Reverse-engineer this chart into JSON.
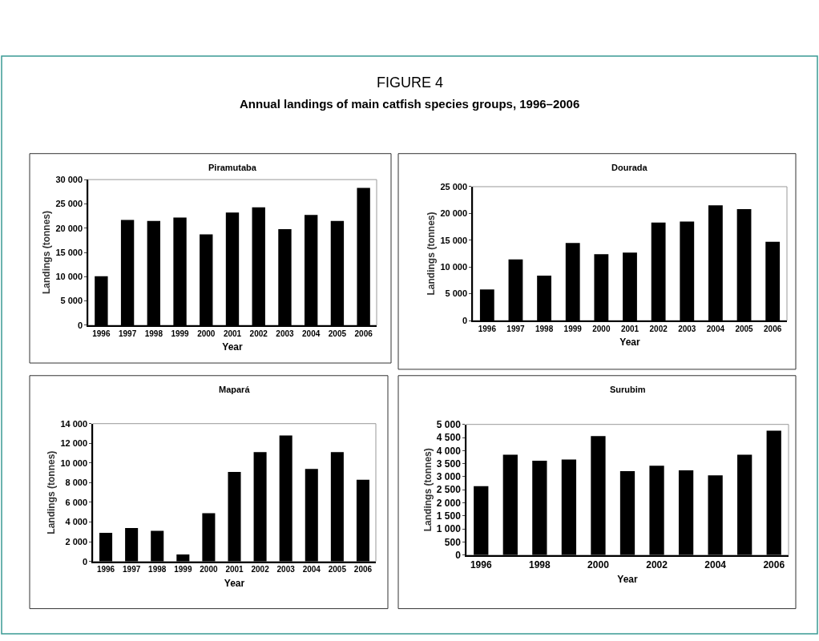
{
  "chart_data": [
    {
      "type": "bar",
      "title": "Piramutaba",
      "xlabel": "Year",
      "ylabel": "Landings (tonnes)",
      "annotations": [
        "FIGURE 4",
        "Annual landings of main catfish species groups, 1996–2006"
      ],
      "categories": [
        "1996",
        "1997",
        "1998",
        "1999",
        "2000",
        "2001",
        "2002",
        "2003",
        "2004",
        "2005",
        "2006"
      ],
      "values": [
        10100,
        21700,
        21500,
        22200,
        18700,
        23200,
        24300,
        19800,
        22700,
        21500,
        28300
      ],
      "color": "#000000",
      "ylim": [
        0,
        30000
      ],
      "yticks": [
        0,
        {
          "value": 5000,
          "label": "5 000"
        },
        {
          "value": 10000,
          "label": "10 000"
        },
        {
          "value": 15000,
          "label": "15 000"
        },
        {
          "value": 20000,
          "label": "20 000"
        },
        {
          "value": 25000,
          "label": "25 000"
        },
        {
          "value": 30000,
          "label": "30 000"
        }
      ]
    },
    {
      "type": "bar",
      "title": "Dourada",
      "xlabel": "Year",
      "ylabel": "Landings (tonnes)",
      "categories": [
        "1996",
        "1997",
        "1998",
        "1999",
        "2000",
        "2001",
        "2002",
        "2003",
        "2004",
        "2005",
        "2006"
      ],
      "values": [
        5800,
        11400,
        8400,
        14500,
        12400,
        12700,
        18300,
        18500,
        21500,
        20800,
        14700
      ],
      "color": "#000000",
      "ylim": [
        0,
        25000
      ],
      "yticks": [
        0,
        {
          "value": 5000,
          "label": "5 000"
        },
        {
          "value": 10000,
          "label": "10 000"
        },
        {
          "value": 15000,
          "label": "15 000"
        },
        {
          "value": 20000,
          "label": "20 000"
        },
        {
          "value": 25000,
          "label": "25 000"
        }
      ]
    },
    {
      "type": "bar",
      "title": "Mapará",
      "xlabel": "Year",
      "ylabel": "Landings (tonnes)",
      "categories": [
        "1996",
        "1997",
        "1998",
        "1999",
        "2000",
        "2001",
        "2002",
        "2003",
        "2004",
        "2005",
        "2006"
      ],
      "values": [
        2900,
        3400,
        3100,
        700,
        4900,
        9100,
        11100,
        12800,
        9400,
        11100,
        8300
      ],
      "color": "#000000",
      "ylim": [
        0,
        14000
      ],
      "yticks": [
        0,
        {
          "value": 2000,
          "label": "2 000"
        },
        {
          "value": 4000,
          "label": "4 000"
        },
        {
          "value": 6000,
          "label": "6 000"
        },
        {
          "value": 8000,
          "label": "8 000"
        },
        {
          "value": 10000,
          "label": "10 000"
        },
        {
          "value": 12000,
          "label": "12 000"
        },
        {
          "value": 14000,
          "label": "14 000"
        }
      ]
    },
    {
      "type": "bar",
      "title": "Surubim",
      "xlabel": "Year",
      "ylabel": "Landings (tonnes)",
      "categories": [
        "1996",
        null,
        "1998",
        null,
        "2000",
        null,
        "2002",
        null,
        "2004",
        null,
        "2006"
      ],
      "values": [
        2640,
        3840,
        3610,
        3660,
        4550,
        3210,
        3420,
        3240,
        3050,
        3840,
        4760
      ],
      "color": "#000000",
      "ylim": [
        0,
        5000
      ],
      "yticks": [
        0,
        500,
        {
          "value": 1000,
          "label": "1 000"
        },
        {
          "value": 1500,
          "label": "1 500"
        },
        {
          "value": 2000,
          "label": "2 000"
        },
        {
          "value": 2500,
          "label": "2 500"
        },
        {
          "value": 3000,
          "label": "3 000"
        },
        {
          "value": 3500,
          "label": "3 500"
        },
        {
          "value": 4000,
          "label": "4 000"
        },
        {
          "value": 4500,
          "label": "4 500"
        },
        {
          "value": 5000,
          "label": "5 000"
        }
      ]
    }
  ]
}
